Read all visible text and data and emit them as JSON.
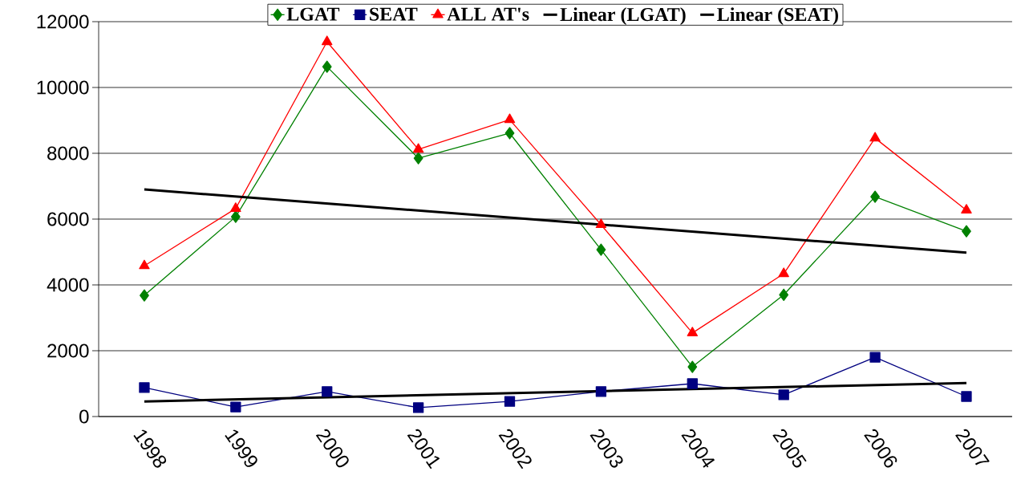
{
  "chart_data": {
    "type": "line",
    "categories": [
      "1998",
      "1999",
      "2000",
      "2001",
      "2002",
      "2003",
      "2004",
      "2005",
      "2006",
      "2007"
    ],
    "series": [
      {
        "name": "LGAT",
        "color": "#008000",
        "marker": "diamond",
        "values": [
          3680,
          6070,
          10630,
          7850,
          8610,
          5070,
          1510,
          3700,
          6680,
          5630
        ]
      },
      {
        "name": "SEAT",
        "color": "#000080",
        "marker": "square",
        "values": [
          880,
          290,
          760,
          270,
          460,
          760,
          1000,
          660,
          1800,
          610
        ]
      },
      {
        "name": "ALL AT's",
        "color": "#ff0000",
        "marker": "triangle",
        "values": [
          4580,
          6320,
          11390,
          8120,
          9020,
          5830,
          2540,
          4340,
          8460,
          6270
        ]
      },
      {
        "name": "Linear (LGAT)",
        "color": "#000000",
        "marker": "none",
        "values": [
          6900,
          null,
          null,
          null,
          null,
          null,
          null,
          null,
          null,
          4980
        ]
      },
      {
        "name": "Linear (SEAT)",
        "color": "#000000",
        "marker": "none",
        "values": [
          460,
          null,
          null,
          null,
          null,
          null,
          null,
          null,
          null,
          1020
        ]
      }
    ],
    "ylim": [
      0,
      12000
    ],
    "yticks": [
      0,
      2000,
      4000,
      6000,
      8000,
      10000,
      12000
    ],
    "grid": "y",
    "legend": "top"
  }
}
